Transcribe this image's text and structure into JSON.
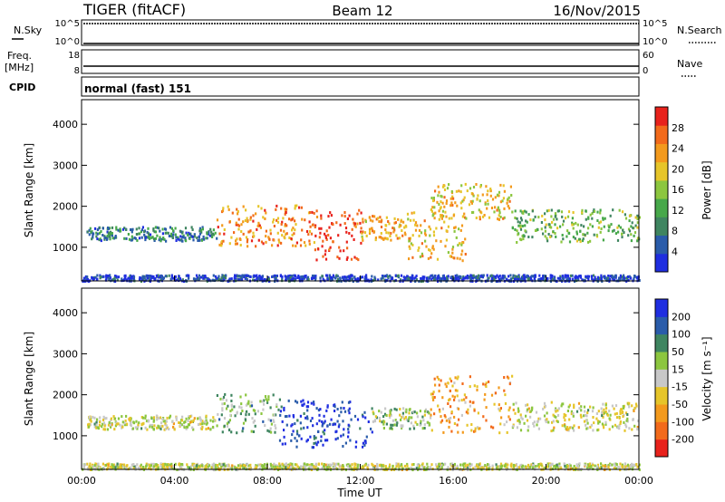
{
  "header": {
    "radar": "TIGER (fitACF)",
    "beam": "Beam 12",
    "date": "16/Nov/2015"
  },
  "status_panels": {
    "nsky_label": "N.Sky",
    "nsearch_label": "N.Search",
    "freq_label_1": "Freq.",
    "freq_label_2": "[MHz]",
    "nave_label": "Nave",
    "cpid_label": "CPID",
    "cpid_value": "normal (fast) 151",
    "noise_ticks_left": [
      "10^5",
      "10^0"
    ],
    "noise_ticks_right": [
      "10^5",
      "10^0"
    ],
    "freq_ticks_left": [
      "18",
      "8"
    ],
    "nave_ticks_right": [
      "60",
      "0"
    ]
  },
  "chart_data": [
    {
      "type": "heatmap",
      "quantity": "power",
      "ylabel": "Slant Range [km]",
      "xlabel": "",
      "ylim": [
        180,
        4600
      ],
      "yticks": [
        1000,
        2000,
        3000,
        4000
      ],
      "xlim_hours": [
        0,
        24
      ],
      "colorbar": {
        "label": "Power [dB]",
        "ticks": [
          "28",
          "24",
          "20",
          "16",
          "12",
          "8",
          "4"
        ],
        "range": [
          0,
          32
        ],
        "colors": [
          "#1f2ee0",
          "#2a5caa",
          "#3f8560",
          "#47a84a",
          "#8cc63f",
          "#e6c52a",
          "#f39a1d",
          "#f26a1b",
          "#e8221c"
        ]
      },
      "scatter_regions": [
        {
          "start": 0.0,
          "end": 24.0,
          "range_km": [
            200,
            350
          ],
          "level": 0.1
        },
        {
          "start": 0.2,
          "end": 5.8,
          "range_km": [
            1180,
            1520
          ],
          "level": 0.25
        },
        {
          "start": 5.8,
          "end": 10.0,
          "range_km": [
            1050,
            2050
          ],
          "level": 0.75
        },
        {
          "start": 10.0,
          "end": 12.0,
          "range_km": [
            700,
            1950
          ],
          "level": 0.92
        },
        {
          "start": 12.0,
          "end": 14.0,
          "range_km": [
            1200,
            1800
          ],
          "level": 0.7
        },
        {
          "start": 14.0,
          "end": 16.5,
          "range_km": [
            700,
            1900
          ],
          "level": 0.65
        },
        {
          "start": 15.0,
          "end": 18.5,
          "range_km": [
            1700,
            2600
          ],
          "level": 0.62
        },
        {
          "start": 18.5,
          "end": 24.0,
          "range_km": [
            1150,
            1950
          ],
          "level": 0.42
        }
      ]
    },
    {
      "type": "heatmap",
      "quantity": "velocity",
      "ylabel": "Slant Range [km]",
      "xlabel": "Time UT",
      "ylim": [
        180,
        4600
      ],
      "yticks": [
        1000,
        2000,
        3000,
        4000
      ],
      "xticks": [
        "00:00",
        "04:00",
        "08:00",
        "12:00",
        "16:00",
        "20:00",
        "00:00"
      ],
      "xlim_hours": [
        0,
        24
      ],
      "colorbar": {
        "label": "Velocity [m s⁻¹]",
        "ticks": [
          "200",
          "100",
          "50",
          "15",
          "-15",
          "-50",
          "-100",
          "-200"
        ],
        "range": [
          -250,
          250
        ],
        "colors": [
          "#e8221c",
          "#f26a1b",
          "#f39a1d",
          "#e6c52a",
          "#c8c8c8",
          "#8cc63f",
          "#3f8560",
          "#2a5caa",
          "#1f2ee0"
        ]
      },
      "scatter_regions": [
        {
          "start": 0.0,
          "end": 24.0,
          "range_km": [
            200,
            350
          ],
          "level": 0.5
        },
        {
          "start": 0.2,
          "end": 5.8,
          "range_km": [
            1180,
            1520
          ],
          "level": 0.5
        },
        {
          "start": 5.8,
          "end": 8.5,
          "range_km": [
            1100,
            2050
          ],
          "level": 0.62
        },
        {
          "start": 8.5,
          "end": 12.5,
          "range_km": [
            750,
            1900
          ],
          "level": 0.92
        },
        {
          "start": 12.5,
          "end": 15.0,
          "range_km": [
            1200,
            1700
          ],
          "level": 0.55
        },
        {
          "start": 15.0,
          "end": 18.5,
          "range_km": [
            1100,
            2500
          ],
          "level": 0.3
        },
        {
          "start": 18.5,
          "end": 24.0,
          "range_km": [
            1150,
            1850
          ],
          "level": 0.5
        }
      ]
    }
  ]
}
